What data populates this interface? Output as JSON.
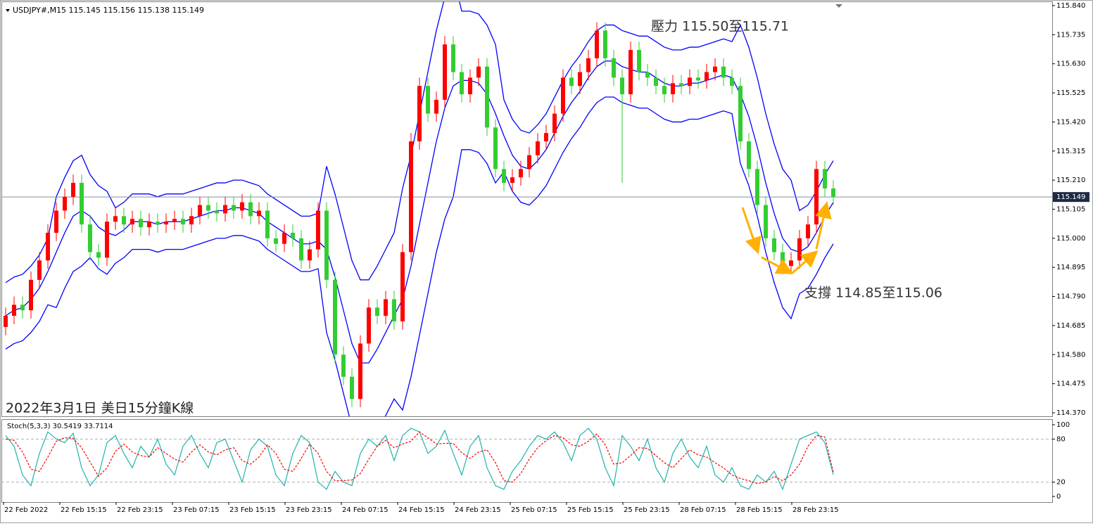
{
  "chart_data": [
    {
      "type": "candlestick",
      "title": "USDJPY#,M15 115.145 115.156 115.138 115.149",
      "annotations": [
        "壓力 115.50至115.71",
        "支撐 114.85至115.06",
        "2022年3月1日 美日15分鐘K線"
      ],
      "up_color": "#ff0000",
      "down_color": "#32cd32",
      "open": [
        114.68,
        114.72,
        114.76,
        114.74,
        114.85,
        114.92,
        115.02,
        115.1,
        115.15,
        115.2,
        115.05,
        114.95,
        114.93,
        115.06,
        115.08,
        115.05,
        115.07,
        115.04,
        115.06,
        115.05,
        115.06,
        115.07,
        115.05,
        115.08,
        115.12,
        115.1,
        115.09,
        115.12,
        115.1,
        115.13,
        115.08,
        115.1,
        115.0,
        114.98,
        115.02,
        115.0,
        114.92,
        114.96,
        115.1,
        114.85,
        114.58,
        114.5,
        114.42,
        114.62,
        114.75,
        114.72,
        114.78,
        114.7,
        114.95,
        115.35,
        115.55,
        115.45,
        115.5,
        115.7,
        115.6,
        115.52,
        115.58,
        115.62,
        115.4,
        115.25,
        115.2,
        115.22,
        115.25,
        115.3,
        115.35,
        115.38,
        115.45,
        115.58,
        115.55,
        115.6,
        115.65,
        115.75,
        115.65,
        115.58,
        115.52,
        115.68,
        115.6,
        115.58,
        115.55,
        115.52,
        115.56,
        115.55,
        115.58,
        115.57,
        115.6,
        115.62,
        115.58,
        115.55,
        115.35,
        115.25,
        115.12,
        115.0,
        114.95,
        114.9,
        114.92,
        115.0,
        115.05,
        115.25,
        115.18
      ],
      "high": [
        114.75,
        114.79,
        114.79,
        114.88,
        114.95,
        115.05,
        115.13,
        115.18,
        115.23,
        115.23,
        115.08,
        114.98,
        115.09,
        115.11,
        115.11,
        115.1,
        115.1,
        115.09,
        115.09,
        115.09,
        115.1,
        115.1,
        115.11,
        115.15,
        115.15,
        115.13,
        115.15,
        115.15,
        115.16,
        115.16,
        115.13,
        115.13,
        115.03,
        115.05,
        115.05,
        115.03,
        114.99,
        115.13,
        115.13,
        114.88,
        114.61,
        114.53,
        114.65,
        114.78,
        114.78,
        114.81,
        114.81,
        114.98,
        115.38,
        115.58,
        115.58,
        115.53,
        115.73,
        115.73,
        115.63,
        115.61,
        115.65,
        115.65,
        115.43,
        115.28,
        115.25,
        115.28,
        115.33,
        115.38,
        115.41,
        115.48,
        115.61,
        115.61,
        115.63,
        115.68,
        115.78,
        115.78,
        115.68,
        115.61,
        115.71,
        115.71,
        115.63,
        115.61,
        115.58,
        115.59,
        115.59,
        115.61,
        115.61,
        115.63,
        115.65,
        115.65,
        115.61,
        115.58,
        115.38,
        115.28,
        115.15,
        115.03,
        114.98,
        114.95,
        115.03,
        115.08,
        115.28,
        115.28,
        115.21
      ],
      "low": [
        114.65,
        114.69,
        114.71,
        114.71,
        114.82,
        114.89,
        114.99,
        115.07,
        115.12,
        115.02,
        114.92,
        114.9,
        114.9,
        115.03,
        115.02,
        115.02,
        115.01,
        115.01,
        115.02,
        115.02,
        115.03,
        115.02,
        115.02,
        115.05,
        115.07,
        115.06,
        115.06,
        115.07,
        115.07,
        115.05,
        115.05,
        114.97,
        114.95,
        114.95,
        114.97,
        114.89,
        114.89,
        114.93,
        114.82,
        114.55,
        114.47,
        114.39,
        114.39,
        114.59,
        114.69,
        114.69,
        114.67,
        114.67,
        114.92,
        115.32,
        115.42,
        115.42,
        115.47,
        115.57,
        115.49,
        115.49,
        115.55,
        115.37,
        115.22,
        115.17,
        115.17,
        115.19,
        115.22,
        115.27,
        115.32,
        115.35,
        115.42,
        115.52,
        115.52,
        115.57,
        115.62,
        115.62,
        115.55,
        115.2,
        115.49,
        115.57,
        115.55,
        115.52,
        115.49,
        115.49,
        115.52,
        115.52,
        115.54,
        115.54,
        115.57,
        115.55,
        115.52,
        115.32,
        115.22,
        115.09,
        114.97,
        114.92,
        114.87,
        114.87,
        114.89,
        114.97,
        115.02,
        115.15,
        115.12
      ],
      "close": [
        114.72,
        114.76,
        114.74,
        114.85,
        114.92,
        115.02,
        115.1,
        115.15,
        115.2,
        115.05,
        114.95,
        114.93,
        115.06,
        115.08,
        115.05,
        115.07,
        115.04,
        115.06,
        115.05,
        115.06,
        115.07,
        115.05,
        115.08,
        115.12,
        115.1,
        115.09,
        115.12,
        115.1,
        115.13,
        115.08,
        115.1,
        115.0,
        114.98,
        115.02,
        115.0,
        114.92,
        114.96,
        115.1,
        114.85,
        114.58,
        114.5,
        114.42,
        114.62,
        114.75,
        114.72,
        114.78,
        114.7,
        114.95,
        115.35,
        115.55,
        115.45,
        115.5,
        115.7,
        115.6,
        115.52,
        115.58,
        115.62,
        115.4,
        115.25,
        115.2,
        115.22,
        115.25,
        115.3,
        115.35,
        115.38,
        115.45,
        115.58,
        115.55,
        115.6,
        115.65,
        115.75,
        115.65,
        115.58,
        115.52,
        115.68,
        115.6,
        115.58,
        115.55,
        115.52,
        115.56,
        115.55,
        115.58,
        115.57,
        115.6,
        115.62,
        115.58,
        115.55,
        115.35,
        115.25,
        115.12,
        115.0,
        114.95,
        114.9,
        114.92,
        115.0,
        115.05,
        115.25,
        115.18,
        115.149
      ],
      "bands": {
        "color": "#0000ff",
        "upper": [
          114.84,
          114.86,
          114.87,
          114.9,
          114.94,
          115.0,
          115.15,
          115.22,
          115.28,
          115.3,
          115.23,
          115.19,
          115.17,
          115.11,
          115.13,
          115.16,
          115.16,
          115.16,
          115.15,
          115.16,
          115.16,
          115.16,
          115.17,
          115.18,
          115.19,
          115.2,
          115.2,
          115.21,
          115.21,
          115.2,
          115.19,
          115.16,
          115.14,
          115.12,
          115.1,
          115.08,
          115.08,
          115.09,
          115.26,
          115.16,
          115.04,
          114.92,
          114.85,
          114.85,
          114.9,
          114.96,
          115.02,
          115.18,
          115.3,
          115.45,
          115.6,
          115.75,
          115.87,
          115.95,
          115.82,
          115.82,
          115.81,
          115.77,
          115.7,
          115.5,
          115.43,
          115.39,
          115.38,
          115.41,
          115.45,
          115.51,
          115.57,
          115.62,
          115.66,
          115.71,
          115.75,
          115.77,
          115.77,
          115.75,
          115.74,
          115.73,
          115.73,
          115.71,
          115.69,
          115.68,
          115.68,
          115.69,
          115.69,
          115.7,
          115.71,
          115.72,
          115.71,
          115.77,
          115.69,
          115.58,
          115.45,
          115.34,
          115.25,
          115.21,
          115.1,
          115.12,
          115.17,
          115.23,
          115.28
        ],
        "middle": [
          114.72,
          114.74,
          114.75,
          114.78,
          114.82,
          114.88,
          114.95,
          115.02,
          115.08,
          115.1,
          115.08,
          115.04,
          115.02,
          115.01,
          115.03,
          115.06,
          115.06,
          115.06,
          115.05,
          115.06,
          115.06,
          115.06,
          115.07,
          115.08,
          115.09,
          115.1,
          115.1,
          115.11,
          115.11,
          115.1,
          115.09,
          115.06,
          115.04,
          115.02,
          115.0,
          114.98,
          114.98,
          114.99,
          114.96,
          114.86,
          114.74,
          114.62,
          114.55,
          114.55,
          114.6,
          114.66,
          114.72,
          114.78,
          114.9,
          115.05,
          115.2,
          115.35,
          115.47,
          115.55,
          115.57,
          115.57,
          115.56,
          115.52,
          115.45,
          115.37,
          115.3,
          115.26,
          115.25,
          115.28,
          115.32,
          115.38,
          115.44,
          115.49,
          115.53,
          115.58,
          115.62,
          115.64,
          115.64,
          115.62,
          115.61,
          115.6,
          115.6,
          115.58,
          115.56,
          115.55,
          115.55,
          115.56,
          115.56,
          115.57,
          115.58,
          115.59,
          115.58,
          115.52,
          115.44,
          115.33,
          115.2,
          115.09,
          115.0,
          114.96,
          114.95,
          114.97,
          115.02,
          115.08,
          115.13
        ],
        "lower": [
          114.6,
          114.62,
          114.63,
          114.66,
          114.7,
          114.76,
          114.75,
          114.82,
          114.88,
          114.9,
          114.93,
          114.89,
          114.87,
          114.91,
          114.93,
          114.96,
          114.96,
          114.96,
          114.95,
          114.96,
          114.96,
          114.96,
          114.97,
          114.98,
          114.99,
          115.0,
          115.0,
          115.01,
          115.01,
          115.0,
          114.99,
          114.96,
          114.94,
          114.92,
          114.9,
          114.88,
          114.88,
          114.89,
          114.66,
          114.56,
          114.44,
          114.32,
          114.25,
          114.25,
          114.3,
          114.36,
          114.42,
          114.38,
          114.5,
          114.65,
          114.8,
          114.95,
          115.07,
          115.15,
          115.32,
          115.32,
          115.31,
          115.27,
          115.2,
          115.24,
          115.17,
          115.13,
          115.12,
          115.15,
          115.19,
          115.25,
          115.31,
          115.36,
          115.4,
          115.45,
          115.49,
          115.51,
          115.51,
          115.49,
          115.48,
          115.47,
          115.47,
          115.45,
          115.43,
          115.42,
          115.42,
          115.43,
          115.43,
          115.44,
          115.45,
          115.46,
          115.45,
          115.27,
          115.19,
          115.08,
          114.95,
          114.84,
          114.75,
          114.71,
          114.8,
          114.82,
          114.87,
          114.93,
          114.98
        ]
      },
      "current_price": {
        "value": 115.149,
        "label": "115.149"
      },
      "ylim": [
        114.37,
        115.84
      ],
      "yticks": [
        {
          "value": 115.84,
          "label": "115.840"
        },
        {
          "value": 115.735,
          "label": "115.735"
        },
        {
          "value": 115.63,
          "label": "115.630"
        },
        {
          "value": 115.525,
          "label": "115.525"
        },
        {
          "value": 115.42,
          "label": "115.420"
        },
        {
          "value": 115.315,
          "label": "115.315"
        },
        {
          "value": 115.21,
          "label": "115.210"
        },
        {
          "value": 115.105,
          "label": "115.105"
        },
        {
          "value": 115.0,
          "label": "115.000"
        },
        {
          "value": 114.895,
          "label": "114.895"
        },
        {
          "value": 114.79,
          "label": "114.790"
        },
        {
          "value": 114.685,
          "label": "114.685"
        },
        {
          "value": 114.58,
          "label": "114.580"
        },
        {
          "value": 114.475,
          "label": "114.475"
        },
        {
          "value": 114.37,
          "label": "114.370"
        }
      ]
    },
    {
      "type": "line",
      "title": "Stoch(5,3,3) 30.5419 33.7114",
      "series": [
        {
          "color": "#20b2aa",
          "dashed": false,
          "values": [
            85,
            70,
            30,
            15,
            60,
            90,
            80,
            75,
            88,
            40,
            15,
            30,
            75,
            85,
            60,
            40,
            70,
            55,
            80,
            45,
            30,
            70,
            85,
            60,
            40,
            75,
            80,
            50,
            20,
            65,
            80,
            70,
            30,
            15,
            60,
            85,
            75,
            20,
            10,
            35,
            20,
            15,
            60,
            80,
            70,
            85,
            50,
            85,
            95,
            90,
            60,
            70,
            92,
            60,
            30,
            70,
            85,
            40,
            15,
            10,
            35,
            50,
            70,
            85,
            80,
            90,
            75,
            50,
            85,
            95,
            80,
            40,
            15,
            85,
            70,
            50,
            80,
            40,
            20,
            60,
            80,
            55,
            40,
            70,
            30,
            20,
            40,
            15,
            10,
            30,
            20,
            35,
            10,
            45,
            80,
            85,
            90,
            75,
            30.5419
          ]
        },
        {
          "color": "#ff0000",
          "dashed": true,
          "values": [
            80,
            78,
            62,
            38,
            35,
            55,
            77,
            82,
            81,
            68,
            48,
            28,
            40,
            63,
            73,
            62,
            57,
            55,
            68,
            60,
            52,
            48,
            62,
            72,
            62,
            58,
            65,
            68,
            50,
            45,
            55,
            72,
            60,
            38,
            35,
            53,
            73,
            60,
            35,
            22,
            22,
            23,
            32,
            52,
            70,
            78,
            68,
            73,
            77,
            90,
            82,
            73,
            74,
            74,
            61,
            53,
            62,
            65,
            47,
            22,
            20,
            32,
            52,
            68,
            78,
            85,
            82,
            72,
            70,
            77,
            87,
            72,
            45,
            47,
            57,
            68,
            67,
            57,
            47,
            40,
            53,
            65,
            58,
            55,
            47,
            40,
            30,
            25,
            22,
            18,
            20,
            28,
            22,
            30,
            45,
            70,
            85,
            83,
            33.7114
          ]
        }
      ],
      "ylim": [
        0,
        100
      ],
      "yticks": [
        0,
        20,
        80,
        100
      ],
      "levels": [
        20,
        80
      ],
      "time_labels": [
        "22 Feb 2022",
        "22 Feb 15:15",
        "22 Feb 23:15",
        "23 Feb 07:15",
        "23 Feb 15:15",
        "23 Feb 23:15",
        "24 Feb 07:15",
        "24 Feb 15:15",
        "24 Feb 23:15",
        "25 Feb 07:15",
        "25 Feb 15:15",
        "25 Feb 23:15",
        "28 Feb 07:15",
        "28 Feb 15:15",
        "28 Feb 23:15"
      ]
    }
  ]
}
